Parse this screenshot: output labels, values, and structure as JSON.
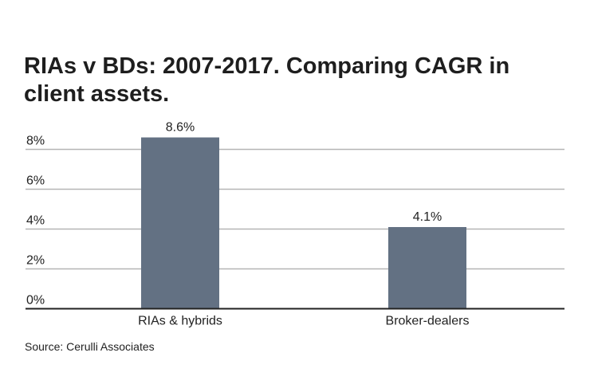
{
  "chart_data": {
    "type": "bar",
    "title": "RIAs v BDs: 2007-2017. Comparing CAGR in client assets.",
    "categories": [
      "RIAs & hybrids",
      "Broker-dealers"
    ],
    "values": [
      8.6,
      4.1
    ],
    "data_labels": [
      "8.6%",
      "4.1%"
    ],
    "xlabel": "",
    "ylabel": "",
    "ylim": [
      0,
      8
    ],
    "yticks": [
      0,
      2,
      4,
      6,
      8
    ],
    "ytick_labels": [
      "0%",
      "2%",
      "4%",
      "6%",
      "8%"
    ],
    "grid": true,
    "bar_color": "#637183",
    "source": "Source: Cerulli Associates"
  }
}
